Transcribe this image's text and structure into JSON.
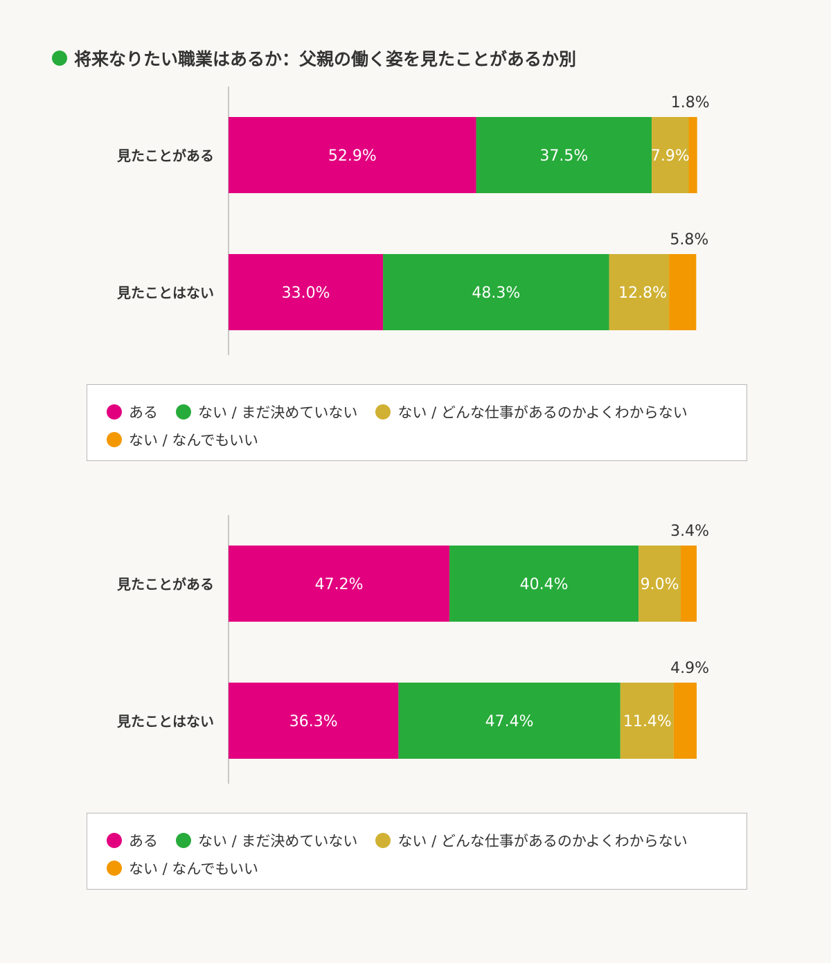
{
  "title": "将来なりたい職業はあるか：父親の働く姿を見たことがあるか別",
  "title_dot_color": "#27ab3a",
  "legend": [
    {
      "label": "ある",
      "color": "#e2007f"
    },
    {
      "label": "ない / まだ決めていない",
      "color": "#27ab3a"
    },
    {
      "label": "ない / どんな仕事があるのかよくわからない",
      "color": "#d0b133"
    },
    {
      "label": "ない / なんでもいい",
      "color": "#f39800"
    }
  ],
  "chart_data": [
    {
      "type": "bar",
      "orientation": "horizontal-stacked",
      "categories": [
        "見たことがある",
        "見たことはない"
      ],
      "series": [
        {
          "name": "ある",
          "values": [
            52.9,
            33.0
          ],
          "labels": [
            "52.9%",
            "33.0%"
          ]
        },
        {
          "name": "ない / まだ決めていない",
          "values": [
            37.5,
            48.3
          ],
          "labels": [
            "37.5%",
            "48.3%"
          ]
        },
        {
          "name": "ない / どんな仕事があるのかよくわからない",
          "values": [
            7.9,
            12.8
          ],
          "labels": [
            "7.9%",
            "12.8%"
          ]
        },
        {
          "name": "ない / なんでもいい",
          "values": [
            1.8,
            5.8
          ],
          "labels": [
            "1.8%",
            "5.8%"
          ]
        }
      ],
      "xlim": [
        0,
        100
      ],
      "grid": false,
      "legend_position": "bottom"
    },
    {
      "type": "bar",
      "orientation": "horizontal-stacked",
      "categories": [
        "見たことがある",
        "見たことはない"
      ],
      "series": [
        {
          "name": "ある",
          "values": [
            47.2,
            36.3
          ],
          "labels": [
            "47.2%",
            "36.3%"
          ]
        },
        {
          "name": "ない / まだ決めていない",
          "values": [
            40.4,
            47.4
          ],
          "labels": [
            "40.4%",
            "47.4%"
          ]
        },
        {
          "name": "ない / どんな仕事があるのかよくわからない",
          "values": [
            9.0,
            11.4
          ],
          "labels": [
            "9.0%",
            "11.4%"
          ]
        },
        {
          "name": "ない / なんでもいい",
          "values": [
            3.4,
            4.9
          ],
          "labels": [
            "3.4%",
            "4.9%"
          ]
        }
      ],
      "xlim": [
        0,
        100
      ],
      "grid": false,
      "legend_position": "bottom"
    }
  ]
}
